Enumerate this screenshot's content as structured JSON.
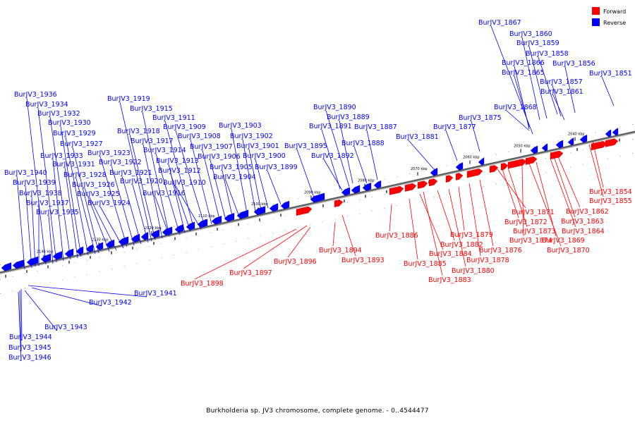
{
  "colors": {
    "forward": "#ff0000",
    "reverse": "#0000ff",
    "backbone": "#808080"
  },
  "legend": [
    {
      "key": "forward",
      "label": "Forward"
    },
    {
      "key": "reverse",
      "label": "Reverse"
    }
  ],
  "caption": "Burkholderia sp. JV3 chromosome, complete genome. - 0..4544477",
  "ticks": [
    "2040 kbp",
    "2050 kbp",
    "2060 kbp",
    "2070 kbp",
    "2080 kbp",
    "2090 kbp",
    "2100 kbp",
    "2110 kbp",
    "2120 kbp",
    "2130 kbp",
    "2140 kbp"
  ],
  "genes_forward": [
    "BurJV3_1854",
    "BurJV3_1855",
    "BurJV3_1862",
    "BurJV3_1863",
    "BurJV3_1864",
    "BurJV3_1869",
    "BurJV3_1870",
    "BurJV3_1871",
    "BurJV3_1872",
    "BurJV3_1873",
    "BurJV3_1874",
    "BurJV3_1876",
    "BurJV3_1878",
    "BurJV3_1879",
    "BurJV3_1880",
    "BurJV3_1882",
    "BurJV3_1883",
    "BurJV3_1884",
    "BurJV3_1885",
    "BurJV3_1886",
    "BurJV3_1893",
    "BurJV3_1894",
    "BurJV3_1896",
    "BurJV3_1897",
    "BurJV3_1898"
  ],
  "genes_reverse": [
    "BurJV3_1851",
    "BurJV3_1856",
    "BurJV3_1857",
    "BurJV3_1858",
    "BurJV3_1859",
    "BurJV3_1860",
    "BurJV3_1861",
    "BurJV3_1865",
    "BurJV3_1866",
    "BurJV3_1867",
    "BurJV3_1868",
    "BurJV3_1875",
    "BurJV3_1877",
    "BurJV3_1881",
    "BurJV3_1887",
    "BurJV3_1888",
    "BurJV3_1889",
    "BurJV3_1890",
    "BurJV3_1891",
    "BurJV3_1892",
    "BurJV3_1895",
    "BurJV3_1899",
    "BurJV3_1900",
    "BurJV3_1901",
    "BurJV3_1902",
    "BurJV3_1903",
    "BurJV3_1904",
    "BurJV3_1905",
    "BurJV3_1906",
    "BurJV3_1907",
    "BurJV3_1908",
    "BurJV3_1909",
    "BurJV3_1910",
    "BurJV3_1911",
    "BurJV3_1912",
    "BurJV3_1913",
    "BurJV3_1914",
    "BurJV3_1915",
    "BurJV3_1916",
    "BurJV3_1917",
    "BurJV3_1918",
    "BurJV3_1919",
    "BurJV3_1920",
    "BurJV3_1921",
    "BurJV3_1922",
    "BurJV3_1923",
    "BurJV3_1924",
    "BurJV3_1925",
    "BurJV3_1926",
    "BurJV3_1927",
    "BurJV3_1928",
    "BurJV3_1929",
    "BurJV3_1930",
    "BurJV3_1931",
    "BurJV3_1932",
    "BurJV3_1933",
    "BurJV3_1934",
    "BurJV3_1935",
    "BurJV3_1936",
    "BurJV3_1937",
    "BurJV3_1938",
    "BurJV3_1939",
    "BurJV3_1940",
    "BurJV3_1941",
    "BurJV3_1942",
    "BurJV3_1943",
    "BurJV3_1944",
    "BurJV3_1945",
    "BurJV3_1946"
  ]
}
